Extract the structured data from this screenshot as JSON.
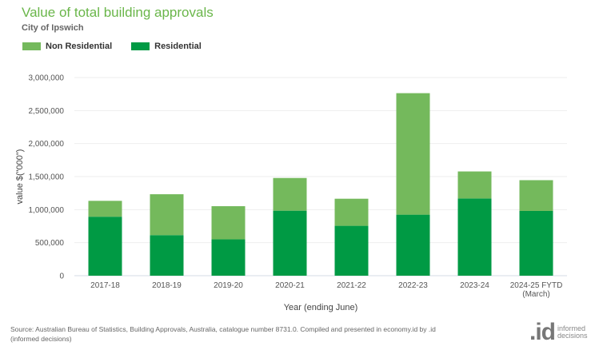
{
  "chart_data": {
    "type": "bar",
    "stacked": true,
    "title": "Value of total building approvals",
    "subtitle": "City of Ipswich",
    "xlabel": "Year (ending June)",
    "ylabel": "value $(\"000\")",
    "ylim": [
      0,
      3000000
    ],
    "yticks": [
      0,
      500000,
      1000000,
      1500000,
      2000000,
      2500000,
      3000000
    ],
    "ytick_labels": [
      "0",
      "500,000",
      "1,000,000",
      "1,500,000",
      "2,000,000",
      "2,500,000",
      "3,000,000"
    ],
    "grid": true,
    "legend_position": "top-left",
    "categories": [
      "2017-18",
      "2018-19",
      "2019-20",
      "2020-21",
      "2021-22",
      "2022-23",
      "2023-24",
      "2024-25 FYTD\n(March)"
    ],
    "series": [
      {
        "name": "Residential",
        "color": "#009a44",
        "values": [
          893000,
          614000,
          550000,
          984000,
          755000,
          924000,
          1169000,
          980000
        ]
      },
      {
        "name": "Non Residential",
        "color": "#74b95c",
        "values": [
          240000,
          619000,
          502000,
          495000,
          410000,
          1839000,
          409000,
          466000
        ]
      }
    ]
  },
  "legend": [
    {
      "label": "Non Residential",
      "color": "#74b95c"
    },
    {
      "label": "Residential",
      "color": "#009a44"
    }
  ],
  "footer": {
    "source": "Source: Australian Bureau of Statistics, Building Approvals, Australia, catalogue number 8731.0. Compiled and presented in economy.id by .id (informed decisions)",
    "logo_mark": ".id",
    "logo_text_1": "informed",
    "logo_text_2": "decisions"
  }
}
